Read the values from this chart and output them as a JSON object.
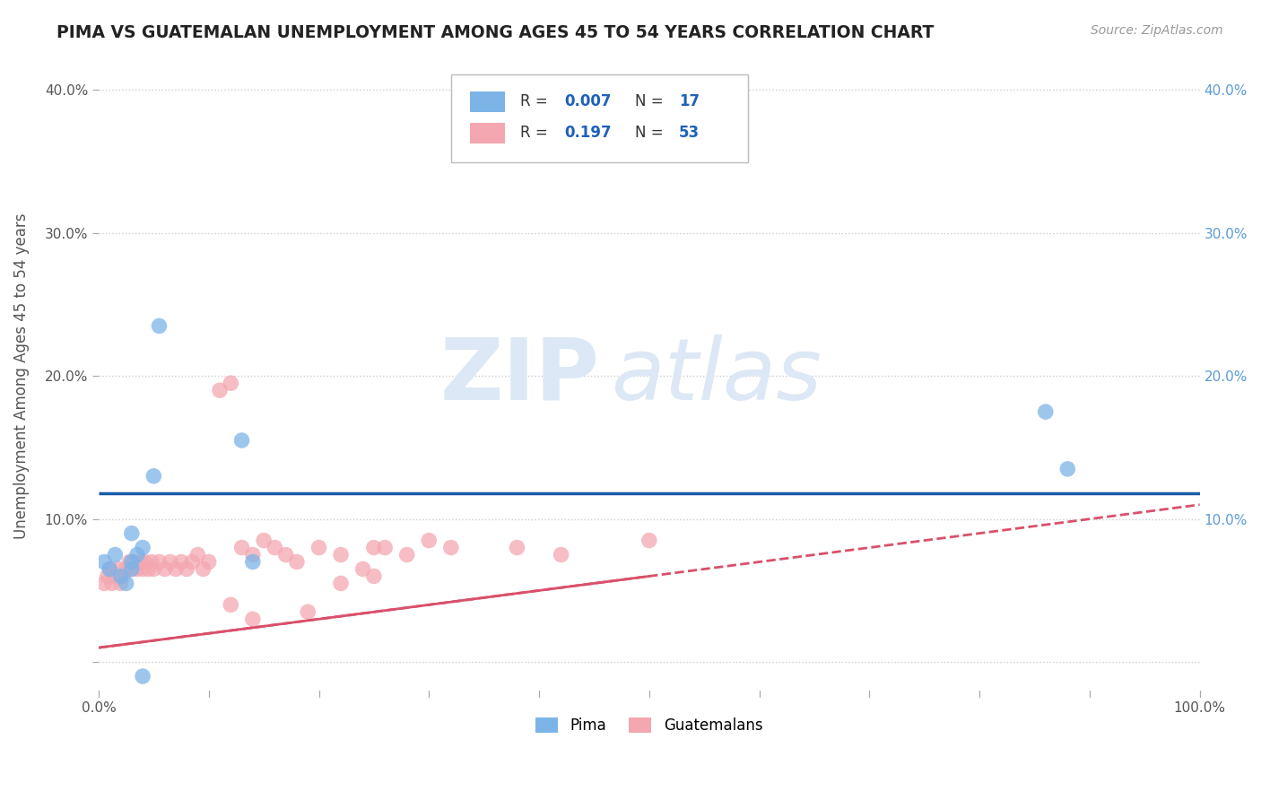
{
  "title": "PIMA VS GUATEMALAN UNEMPLOYMENT AMONG AGES 45 TO 54 YEARS CORRELATION CHART",
  "source_text": "Source: ZipAtlas.com",
  "xlabel": "",
  "ylabel": "Unemployment Among Ages 45 to 54 years",
  "xlim": [
    0,
    1.0
  ],
  "ylim": [
    -0.02,
    0.42
  ],
  "x_ticks": [
    0.0,
    0.1,
    0.2,
    0.3,
    0.4,
    0.5,
    0.6,
    0.7,
    0.8,
    0.9,
    1.0
  ],
  "x_tick_labels": [
    "0.0%",
    "",
    "",
    "",
    "",
    "",
    "",
    "",
    "",
    "",
    "100.0%"
  ],
  "y_ticks": [
    0.0,
    0.1,
    0.2,
    0.3,
    0.4
  ],
  "y_tick_labels": [
    "",
    "10.0%",
    "20.0%",
    "30.0%",
    "40.0%"
  ],
  "pima_color": "#7cb4e8",
  "guatemalan_color": "#f4a7b0",
  "pima_line_color": "#1a5ca8",
  "guatemalan_line_color": "#d9506a",
  "watermark_zip": "ZIP",
  "watermark_atlas": "atlas",
  "background_color": "#ffffff",
  "grid_color": "#cccccc",
  "pima_scatter_x": [
    0.005,
    0.01,
    0.015,
    0.02,
    0.025,
    0.03,
    0.03,
    0.035,
    0.04,
    0.05,
    0.055,
    0.13,
    0.14,
    0.86,
    0.88,
    0.04,
    0.03
  ],
  "pima_scatter_y": [
    0.07,
    0.065,
    0.075,
    0.06,
    0.055,
    0.07,
    0.065,
    0.075,
    0.08,
    0.13,
    0.235,
    0.155,
    0.07,
    0.175,
    0.135,
    -0.01,
    0.09
  ],
  "guatemalan_scatter_x": [
    0.005,
    0.008,
    0.01,
    0.012,
    0.015,
    0.018,
    0.02,
    0.022,
    0.025,
    0.028,
    0.03,
    0.032,
    0.035,
    0.038,
    0.04,
    0.042,
    0.045,
    0.048,
    0.05,
    0.055,
    0.06,
    0.065,
    0.07,
    0.075,
    0.08,
    0.085,
    0.09,
    0.095,
    0.1,
    0.11,
    0.12,
    0.13,
    0.14,
    0.15,
    0.16,
    0.17,
    0.18,
    0.2,
    0.22,
    0.24,
    0.26,
    0.28,
    0.3,
    0.32,
    0.38,
    0.42,
    0.5,
    0.22,
    0.25,
    0.14,
    0.19,
    0.12,
    0.25
  ],
  "guatemalan_scatter_y": [
    0.055,
    0.06,
    0.065,
    0.055,
    0.06,
    0.065,
    0.055,
    0.06,
    0.065,
    0.07,
    0.065,
    0.07,
    0.065,
    0.07,
    0.065,
    0.07,
    0.065,
    0.07,
    0.065,
    0.07,
    0.065,
    0.07,
    0.065,
    0.07,
    0.065,
    0.07,
    0.075,
    0.065,
    0.07,
    0.19,
    0.195,
    0.08,
    0.075,
    0.085,
    0.08,
    0.075,
    0.07,
    0.08,
    0.075,
    0.065,
    0.08,
    0.075,
    0.085,
    0.08,
    0.08,
    0.075,
    0.085,
    0.055,
    0.06,
    0.03,
    0.035,
    0.04,
    0.08
  ],
  "pima_line_y_intercept": 0.118,
  "pima_line_slope": 0.0,
  "guat_line_y_intercept": 0.01,
  "guat_line_slope": 0.1
}
